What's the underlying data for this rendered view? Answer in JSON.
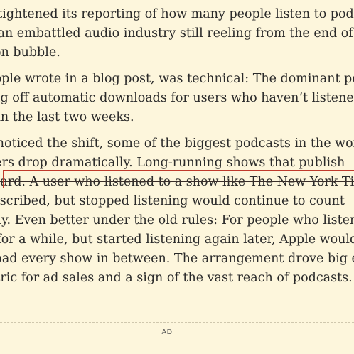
{
  "article": {
    "paragraphs": [
      {
        "lines": [
          "recently tightened its reporting of how many people listen to podcasts,",
          "through an embattled audio industry still reeling from the end of",
          "production bubble."
        ]
      },
      {
        "lines": [
          "The change, Apple wrote in a blog post, was technical: The dominant podcasting",
          "switching off automatic downloads for users who haven’t listened",
          "a show in the last two weeks."
        ]
      },
      {
        "lines": [
          "As users noticed the shift, some of the biggest podcasts in the world",
          "saw numbers drop dramatically. Long-running shows that publish",
          "particularly hard. A user who listened to a show like The New York Times",
          "episodes, subscribed, but stopped listening would continue to count",
          "indefinitely. Even better under the old rules: For people who listened",
          "tuned off for a while, but started listening again later, Apple would",
          "redownload every show in between. The arrangement drove big e",
          "crucial metric for ad sales and a sign of the vast reach of podcasts."
        ]
      }
    ]
  },
  "ad": {
    "label": "AD"
  }
}
